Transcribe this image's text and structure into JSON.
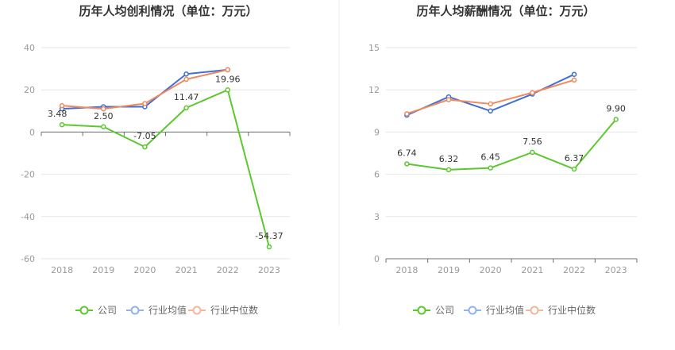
{
  "chart_data": [
    {
      "type": "line",
      "title": "历年人均创利情况（单位：万元）",
      "categories": [
        "2018",
        "2019",
        "2020",
        "2021",
        "2022",
        "2023"
      ],
      "ylim": [
        -60,
        40
      ],
      "yticks": [
        "40",
        "20",
        "0",
        "-20",
        "-40",
        "-60"
      ],
      "yticks_values": [
        40,
        20,
        0,
        -20,
        -40,
        -60
      ],
      "series": [
        {
          "name": "公司",
          "color": "#5cc72e",
          "values": [
            3.48,
            2.5,
            -7.05,
            11.47,
            19.96,
            -54.37
          ],
          "labels": [
            "3.48",
            "2.50",
            "-7.05",
            "11.47",
            "19.96",
            "-54.37"
          ]
        },
        {
          "name": "行业均值",
          "color": "#3d6fd6",
          "values": [
            11,
            12,
            12,
            27.5,
            29.5,
            null
          ]
        },
        {
          "name": "行业中位数",
          "color": "#f08a5d",
          "values": [
            12.5,
            11,
            13.5,
            25,
            29.5,
            null
          ]
        }
      ]
    },
    {
      "type": "line",
      "title": "历年人均薪酬情况（单位：万元）",
      "categories": [
        "2018",
        "2019",
        "2020",
        "2021",
        "2022",
        "2023"
      ],
      "ylim": [
        0,
        15
      ],
      "yticks": [
        "15",
        "12",
        "9",
        "6",
        "3",
        "0"
      ],
      "yticks_values": [
        15,
        12,
        9,
        6,
        3,
        0
      ],
      "series": [
        {
          "name": "公司",
          "color": "#5cc72e",
          "values": [
            6.74,
            6.32,
            6.45,
            7.56,
            6.37,
            9.9
          ],
          "labels": [
            "6.74",
            "6.32",
            "6.45",
            "7.56",
            "6.37",
            "9.90"
          ]
        },
        {
          "name": "行业均值",
          "color": "#3d6fd6",
          "values": [
            10.2,
            11.5,
            10.5,
            11.7,
            13.1,
            null
          ]
        },
        {
          "name": "行业中位数",
          "color": "#f08a5d",
          "values": [
            10.3,
            11.3,
            11.0,
            11.8,
            12.7,
            null
          ]
        }
      ]
    }
  ],
  "legend": [
    {
      "name": "公司",
      "color": "#5cc72e"
    },
    {
      "name": "行业均值",
      "color": "#8fb3ea"
    },
    {
      "name": "行业中位数",
      "color": "#f4b79a"
    }
  ]
}
